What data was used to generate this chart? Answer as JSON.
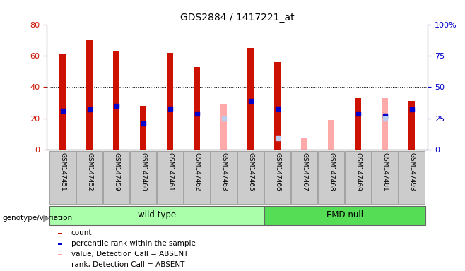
{
  "title": "GDS2884 / 1417221_at",
  "samples": [
    "GSM147451",
    "GSM147452",
    "GSM147459",
    "GSM147460",
    "GSM147461",
    "GSM147462",
    "GSM147463",
    "GSM147465",
    "GSM147466",
    "GSM147467",
    "GSM147468",
    "GSM147469",
    "GSM147481",
    "GSM147493"
  ],
  "count": [
    61,
    70,
    63,
    28,
    62,
    53,
    0,
    65,
    56,
    0,
    0,
    33,
    0,
    31
  ],
  "percentile_rank": [
    31,
    32,
    35,
    21,
    33,
    29,
    0,
    39,
    33,
    0,
    0,
    29,
    27,
    32
  ],
  "absent_value": [
    0,
    0,
    0,
    0,
    0,
    0,
    36,
    0,
    0,
    9,
    24,
    0,
    41,
    0
  ],
  "absent_rank": [
    0,
    0,
    0,
    0,
    0,
    0,
    25,
    0,
    9,
    0,
    0,
    0,
    25,
    0
  ],
  "wt_count": 8,
  "emd_count": 6,
  "group_labels": [
    "wild type",
    "EMD null"
  ],
  "group_colors": [
    "#aaffaa",
    "#55dd55"
  ],
  "ylim_left": [
    0,
    80
  ],
  "ylim_right": [
    0,
    100
  ],
  "yticks_left": [
    0,
    20,
    40,
    60,
    80
  ],
  "yticks_right": [
    0,
    25,
    50,
    75,
    100
  ],
  "ytick_labels_right": [
    "0",
    "25",
    "50",
    "75",
    "100%"
  ],
  "color_count": "#cc1100",
  "color_rank": "#0000cc",
  "color_absent_value": "#ffaaaa",
  "color_absent_rank": "#bbccee",
  "bar_width": 0.25,
  "rank_bar_width": 0.25,
  "legend_items": [
    {
      "label": "count",
      "color": "#cc1100"
    },
    {
      "label": "percentile rank within the sample",
      "color": "#0000cc"
    },
    {
      "label": "value, Detection Call = ABSENT",
      "color": "#ffaaaa"
    },
    {
      "label": "rank, Detection Call = ABSENT",
      "color": "#bbccee"
    }
  ]
}
